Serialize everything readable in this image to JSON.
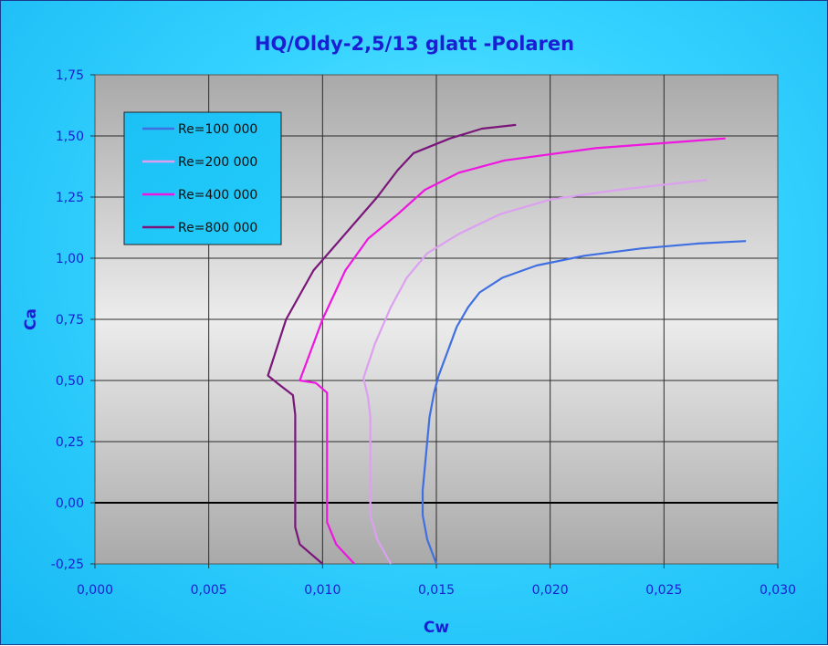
{
  "chart_data": {
    "type": "line",
    "title": "HQ/Oldy-2,5/13 glatt -Polaren",
    "xlabel": "Cw",
    "ylabel": "Ca",
    "xlim": [
      0,
      0.03
    ],
    "ylim": [
      -0.25,
      1.75
    ],
    "x_ticks": [
      "0,000",
      "0,005",
      "0,010",
      "0,015",
      "0,020",
      "0,025",
      "0,030"
    ],
    "y_ticks": [
      "-0,25",
      "0,00",
      "0,25",
      "0,50",
      "0,75",
      "1,00",
      "1,25",
      "1,50",
      "1,75"
    ],
    "grid": true,
    "legend_position": "top-left",
    "series": [
      {
        "name": "Re=100 000",
        "color": "#3f6fe0",
        "points": [
          [
            0.015,
            -0.25
          ],
          [
            0.0146,
            -0.15
          ],
          [
            0.0144,
            -0.05
          ],
          [
            0.0144,
            0.05
          ],
          [
            0.0145,
            0.15
          ],
          [
            0.0146,
            0.25
          ],
          [
            0.0147,
            0.35
          ],
          [
            0.0149,
            0.45
          ],
          [
            0.0151,
            0.52
          ],
          [
            0.0155,
            0.62
          ],
          [
            0.0159,
            0.72
          ],
          [
            0.0164,
            0.8
          ],
          [
            0.0169,
            0.86
          ],
          [
            0.0179,
            0.92
          ],
          [
            0.0194,
            0.97
          ],
          [
            0.0215,
            1.01
          ],
          [
            0.024,
            1.04
          ],
          [
            0.0265,
            1.06
          ],
          [
            0.0286,
            1.07
          ]
        ]
      },
      {
        "name": "Re=200 000",
        "color": "#dca0f0",
        "points": [
          [
            0.013,
            -0.25
          ],
          [
            0.0124,
            -0.15
          ],
          [
            0.0121,
            -0.05
          ],
          [
            0.0121,
            0.05
          ],
          [
            0.0121,
            0.15
          ],
          [
            0.0121,
            0.25
          ],
          [
            0.0121,
            0.35
          ],
          [
            0.012,
            0.43
          ],
          [
            0.0118,
            0.51
          ],
          [
            0.0123,
            0.65
          ],
          [
            0.013,
            0.8
          ],
          [
            0.0137,
            0.92
          ],
          [
            0.0146,
            1.02
          ],
          [
            0.016,
            1.1
          ],
          [
            0.0178,
            1.18
          ],
          [
            0.02,
            1.24
          ],
          [
            0.023,
            1.28
          ],
          [
            0.0269,
            1.32
          ]
        ]
      },
      {
        "name": "Re=400 000",
        "color": "#ee16e0",
        "points": [
          [
            0.0114,
            -0.25
          ],
          [
            0.0106,
            -0.17
          ],
          [
            0.0102,
            -0.08
          ],
          [
            0.0102,
            0.05
          ],
          [
            0.0102,
            0.2
          ],
          [
            0.0102,
            0.32
          ],
          [
            0.0102,
            0.45
          ],
          [
            0.0097,
            0.49
          ],
          [
            0.009,
            0.5
          ],
          [
            0.01,
            0.75
          ],
          [
            0.011,
            0.95
          ],
          [
            0.012,
            1.08
          ],
          [
            0.0133,
            1.18
          ],
          [
            0.0145,
            1.28
          ],
          [
            0.016,
            1.35
          ],
          [
            0.018,
            1.4
          ],
          [
            0.022,
            1.45
          ],
          [
            0.0277,
            1.49
          ]
        ]
      },
      {
        "name": "Re=800 000",
        "color": "#7a1679",
        "points": [
          [
            0.01,
            -0.25
          ],
          [
            0.009,
            -0.17
          ],
          [
            0.0088,
            -0.1
          ],
          [
            0.0088,
            0.1
          ],
          [
            0.0088,
            0.25
          ],
          [
            0.0088,
            0.36
          ],
          [
            0.0087,
            0.44
          ],
          [
            0.008,
            0.49
          ],
          [
            0.0076,
            0.52
          ],
          [
            0.0084,
            0.75
          ],
          [
            0.0096,
            0.95
          ],
          [
            0.011,
            1.1
          ],
          [
            0.0124,
            1.25
          ],
          [
            0.0133,
            1.36
          ],
          [
            0.014,
            1.43
          ],
          [
            0.0156,
            1.49
          ],
          [
            0.017,
            1.53
          ],
          [
            0.0185,
            1.545
          ]
        ]
      }
    ]
  }
}
